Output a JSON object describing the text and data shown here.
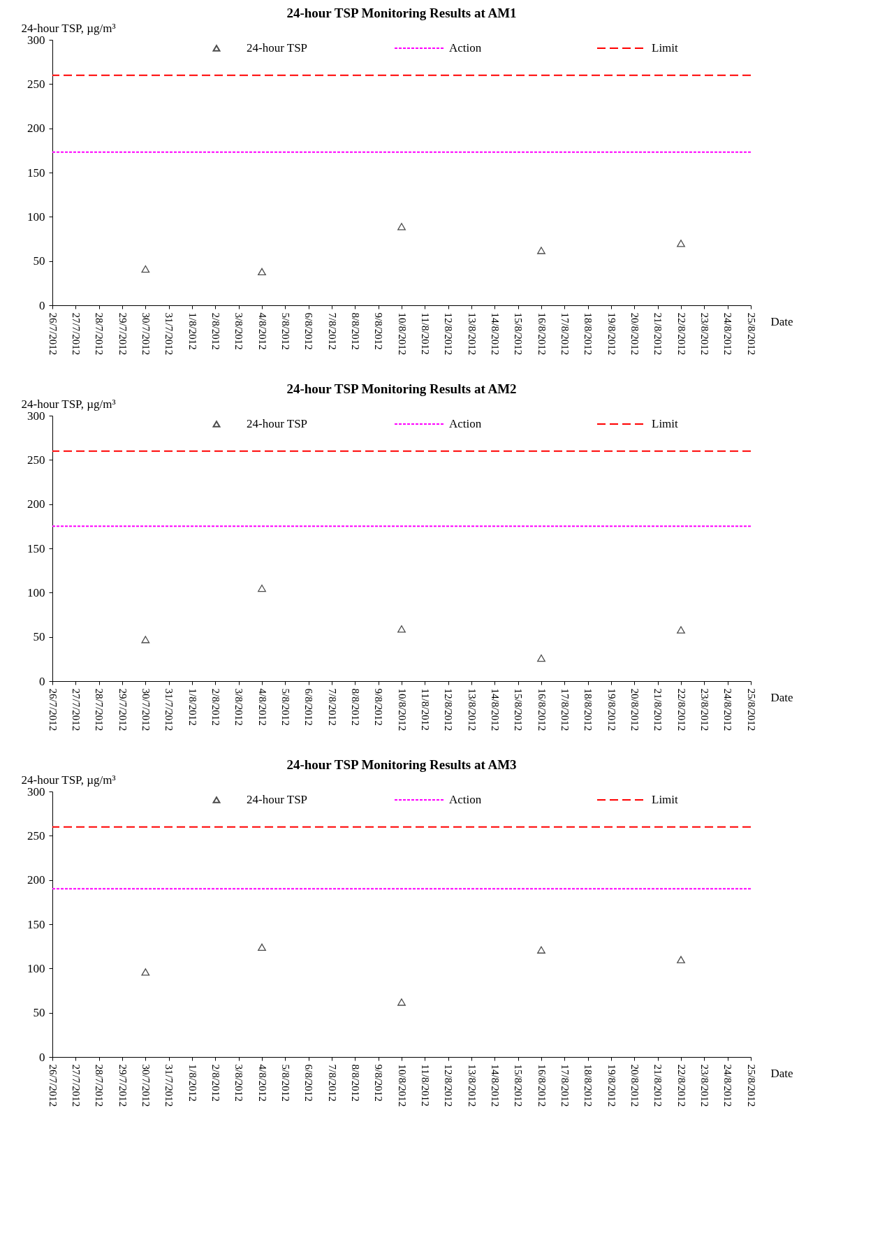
{
  "chart_data": [
    {
      "type": "scatter",
      "title": "24-hour TSP Monitoring Results at AM1",
      "xlabel": "Date",
      "ylabel": "24-hour TSP, µg/m³",
      "marker": "triangle",
      "legend": "top",
      "grid": false,
      "categories": [
        "26/7/2012",
        "27/7/2012",
        "28/7/2012",
        "29/7/2012",
        "30/7/2012",
        "31/7/2012",
        "1/8/2012",
        "2/8/2012",
        "3/8/2012",
        "4/8/2012",
        "5/8/2012",
        "6/8/2012",
        "7/8/2012",
        "8/8/2012",
        "9/8/2012",
        "10/8/2012",
        "11/8/2012",
        "12/8/2012",
        "13/8/2012",
        "14/8/2012",
        "15/8/2012",
        "16/8/2012",
        "17/8/2012",
        "18/8/2012",
        "19/8/2012",
        "20/8/2012",
        "21/8/2012",
        "22/8/2012",
        "23/8/2012",
        "24/8/2012",
        "25/8/2012"
      ],
      "series": [
        {
          "name": "24-hour TSP",
          "color": "#000000",
          "values": [
            null,
            null,
            null,
            null,
            41,
            null,
            null,
            null,
            null,
            38,
            null,
            null,
            null,
            null,
            null,
            89,
            null,
            null,
            null,
            null,
            null,
            62,
            null,
            null,
            null,
            null,
            null,
            70,
            null,
            null,
            null
          ]
        }
      ],
      "ylim": [
        0,
        300
      ],
      "yticks": [
        0,
        50,
        100,
        150,
        200,
        250,
        300
      ],
      "ref_lines": [
        {
          "axis": "y",
          "value": 173,
          "label": "Action",
          "color": "#ff00ff",
          "line_style": "dotted"
        },
        {
          "axis": "y",
          "value": 260,
          "label": "Limit",
          "color": "#ff0000",
          "line_style": "dashed"
        }
      ]
    },
    {
      "type": "scatter",
      "title": "24-hour TSP Monitoring Results at AM2",
      "xlabel": "Date",
      "ylabel": "24-hour TSP, µg/m³",
      "marker": "triangle",
      "legend": "top",
      "grid": false,
      "categories": [
        "26/7/2012",
        "27/7/2012",
        "28/7/2012",
        "29/7/2012",
        "30/7/2012",
        "31/7/2012",
        "1/8/2012",
        "2/8/2012",
        "3/8/2012",
        "4/8/2012",
        "5/8/2012",
        "6/8/2012",
        "7/8/2012",
        "8/8/2012",
        "9/8/2012",
        "10/8/2012",
        "11/8/2012",
        "12/8/2012",
        "13/8/2012",
        "14/8/2012",
        "15/8/2012",
        "16/8/2012",
        "17/8/2012",
        "18/8/2012",
        "19/8/2012",
        "20/8/2012",
        "21/8/2012",
        "22/8/2012",
        "23/8/2012",
        "24/8/2012",
        "25/8/2012"
      ],
      "series": [
        {
          "name": "24-hour TSP",
          "color": "#000000",
          "values": [
            null,
            null,
            null,
            null,
            47,
            null,
            null,
            null,
            null,
            105,
            null,
            null,
            null,
            null,
            null,
            59,
            null,
            null,
            null,
            null,
            null,
            26,
            null,
            null,
            null,
            null,
            null,
            58,
            null,
            null,
            null
          ]
        }
      ],
      "ylim": [
        0,
        300
      ],
      "yticks": [
        0,
        50,
        100,
        150,
        200,
        250,
        300
      ],
      "ref_lines": [
        {
          "axis": "y",
          "value": 175,
          "label": "Action",
          "color": "#ff00ff",
          "line_style": "dotted"
        },
        {
          "axis": "y",
          "value": 260,
          "label": "Limit",
          "color": "#ff0000",
          "line_style": "dashed"
        }
      ]
    },
    {
      "type": "scatter",
      "title": "24-hour TSP Monitoring Results at AM3",
      "xlabel": "Date",
      "ylabel": "24-hour TSP, µg/m³",
      "marker": "triangle",
      "legend": "top",
      "grid": false,
      "categories": [
        "26/7/2012",
        "27/7/2012",
        "28/7/2012",
        "29/7/2012",
        "30/7/2012",
        "31/7/2012",
        "1/8/2012",
        "2/8/2012",
        "3/8/2012",
        "4/8/2012",
        "5/8/2012",
        "6/8/2012",
        "7/8/2012",
        "8/8/2012",
        "9/8/2012",
        "10/8/2012",
        "11/8/2012",
        "12/8/2012",
        "13/8/2012",
        "14/8/2012",
        "15/8/2012",
        "16/8/2012",
        "17/8/2012",
        "18/8/2012",
        "19/8/2012",
        "20/8/2012",
        "21/8/2012",
        "22/8/2012",
        "23/8/2012",
        "24/8/2012",
        "25/8/2012"
      ],
      "series": [
        {
          "name": "24-hour TSP",
          "color": "#000000",
          "values": [
            null,
            null,
            null,
            null,
            96,
            null,
            null,
            null,
            null,
            124,
            null,
            null,
            null,
            null,
            null,
            62,
            null,
            null,
            null,
            null,
            null,
            121,
            null,
            null,
            null,
            null,
            null,
            110,
            null,
            null,
            null
          ]
        }
      ],
      "ylim": [
        0,
        300
      ],
      "yticks": [
        0,
        50,
        100,
        150,
        200,
        250,
        300
      ],
      "ref_lines": [
        {
          "axis": "y",
          "value": 190,
          "label": "Action",
          "color": "#ff00ff",
          "line_style": "dotted"
        },
        {
          "axis": "y",
          "value": 260,
          "label": "Limit",
          "color": "#ff0000",
          "line_style": "dashed"
        }
      ]
    }
  ]
}
